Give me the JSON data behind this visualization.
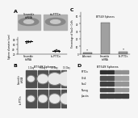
{
  "title_A": "A",
  "title_B": "B",
  "title_C": "C",
  "title_D": "D",
  "panel_A_label1": "Scramble\nshRNA",
  "panel_A_label2": "sh-PTTCn",
  "panel_B_title": "BT549 Spheres",
  "panel_B_days": [
    "1 Day",
    "5 Day",
    "10 Day",
    "15 Day"
  ],
  "panel_B_row1": "Scramble\nshRNA",
  "panel_B_row2": "sh-PTTCn",
  "panel_C_title": "BT549 Spheres",
  "panel_C_xlabels": [
    "Adherent",
    "Scramble\nshRNA",
    "Sh-PTTCn"
  ],
  "panel_C_ylabel": "Percentage of Sox2+ Cells",
  "panel_C_values": [
    1.5,
    42,
    2.5
  ],
  "panel_C_bar_color": "#a0a0a0",
  "panel_D_title": "BT549 Spheres",
  "panel_D_proteins": [
    "PTTCn",
    "Oct4",
    "Sox2",
    "Nanog",
    "β-actin"
  ],
  "panel_D_cols": 4,
  "scatter_y1": [
    68,
    72,
    75,
    70,
    73,
    71,
    74,
    69,
    76,
    72,
    70,
    73,
    71,
    74,
    68,
    75,
    72,
    70
  ],
  "scatter_y2": [
    35,
    32,
    38,
    30,
    36,
    33,
    37,
    31,
    34,
    36,
    32,
    35,
    33,
    38,
    30,
    34,
    37,
    31
  ],
  "scatter_ylabel": "Sphere diameter (um)",
  "bg_color": "#f5f5f5",
  "img_bg": "#b0b0b0",
  "img_dark": "#404040",
  "sphere_bg": "#505050"
}
